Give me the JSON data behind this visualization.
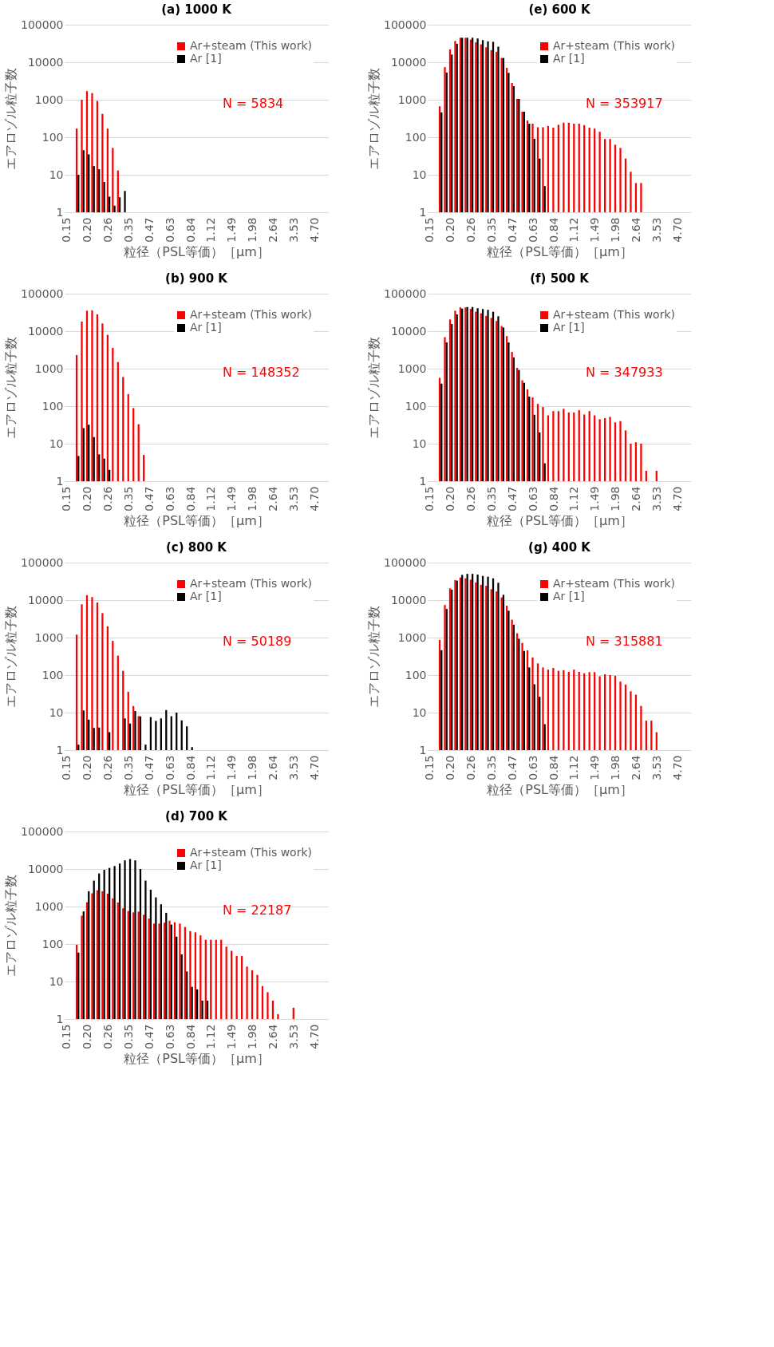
{
  "chart_data": [
    {
      "type": "bar",
      "title": "(a) 1000 K",
      "xlabel": "粒径（PSL等価）［μm］",
      "ylabel": "エアロゾル粒子数",
      "log": true,
      "grid": "y",
      "legend": "top right",
      "ylim": [
        1,
        100000
      ],
      "yticks": [
        1,
        10,
        100,
        1000,
        10000,
        100000
      ],
      "annotations": [
        "N = 5834"
      ],
      "categories": [
        "0.15",
        null,
        null,
        null,
        "0.20",
        null,
        null,
        null,
        "0.26",
        null,
        null,
        null,
        "0.35",
        null,
        null,
        null,
        "0.47",
        null,
        null,
        null,
        "0.63",
        null,
        null,
        null,
        "0.84",
        null,
        null,
        null,
        "1.12",
        null,
        null,
        null,
        "1.49",
        null,
        null,
        null,
        "1.98",
        null,
        null,
        null,
        "2.64",
        null,
        null,
        null,
        "3.53",
        null,
        null,
        null,
        "4.70",
        null,
        null
      ],
      "series": [
        {
          "name": "Ar+steam (This work)",
          "color": "#ff0000",
          "values": [
            null,
            null,
            170,
            1000,
            1700,
            1500,
            930,
            420,
            170,
            52,
            13,
            null,
            null,
            null,
            null,
            null,
            null,
            null,
            null,
            null,
            null,
            null,
            null,
            null,
            null,
            null,
            null,
            null,
            null,
            null,
            null,
            null,
            null,
            null,
            null,
            null,
            null,
            null,
            null,
            null,
            null,
            null,
            null,
            null,
            null,
            null,
            null,
            null,
            null,
            null,
            null
          ]
        },
        {
          "name": "Ar [1]",
          "color": "#000000",
          "values": [
            null,
            null,
            10,
            45,
            35,
            17,
            14,
            6.4,
            2.6,
            1.5,
            2.5,
            3.7,
            null,
            null,
            null,
            null,
            null,
            null,
            null,
            null,
            null,
            null,
            null,
            null,
            null,
            null,
            null,
            null,
            null,
            null,
            null,
            null,
            null,
            null,
            null,
            null,
            null,
            null,
            null,
            null,
            null,
            null,
            null,
            null,
            null,
            null,
            null,
            null,
            null,
            null,
            null
          ]
        }
      ]
    },
    {
      "type": "bar",
      "title": "(e) 600 K",
      "xlabel": "粒径（PSL等価）［μm］",
      "ylabel": "エアロゾル粒子数",
      "log": true,
      "grid": "y",
      "legend": "top right",
      "ylim": [
        1,
        100000
      ],
      "yticks": [
        1,
        10,
        100,
        1000,
        10000,
        100000
      ],
      "annotations": [
        "N = 353917"
      ],
      "categories": [
        "0.15",
        null,
        null,
        null,
        "0.20",
        null,
        null,
        null,
        "0.26",
        null,
        null,
        null,
        "0.35",
        null,
        null,
        null,
        "0.47",
        null,
        null,
        null,
        "0.63",
        null,
        null,
        null,
        "0.84",
        null,
        null,
        null,
        "1.12",
        null,
        null,
        null,
        "1.49",
        null,
        null,
        null,
        "1.98",
        null,
        null,
        null,
        "2.64",
        null,
        null,
        null,
        "3.53",
        null,
        null,
        null,
        "4.70",
        null,
        null
      ],
      "series": [
        {
          "name": "Ar+steam (This work)",
          "color": "#ff0000",
          "values": [
            null,
            null,
            670,
            7400,
            22000,
            37000,
            45000,
            45000,
            40000,
            34000,
            30000,
            25000,
            21000,
            19000,
            13000,
            7100,
            2800,
            1050,
            480,
            280,
            230,
            185,
            185,
            200,
            180,
            215,
            245,
            245,
            230,
            230,
            210,
            180,
            170,
            140,
            90,
            90,
            63,
            52,
            27,
            12,
            6,
            6,
            null,
            null,
            null,
            null,
            null,
            null,
            null,
            null,
            null
          ]
        },
        {
          "name": "Ar [1]",
          "color": "#000000",
          "values": [
            null,
            null,
            460,
            5300,
            16000,
            31000,
            45000,
            45000,
            45000,
            43000,
            39000,
            36000,
            35000,
            26000,
            13000,
            5200,
            2300,
            1050,
            480,
            230,
            91,
            27,
            5,
            null,
            null,
            null,
            null,
            null,
            null,
            null,
            null,
            null,
            null,
            null,
            null,
            null,
            null,
            null,
            null,
            null,
            null,
            null,
            null,
            null,
            null,
            null,
            null,
            null,
            null,
            null,
            null
          ]
        }
      ]
    },
    {
      "type": "bar",
      "title": "(b) 900 K",
      "xlabel": "粒径（PSL等価）［μm］",
      "ylabel": "エアロゾル粒子数",
      "log": true,
      "grid": "y",
      "legend": "top right",
      "ylim": [
        1,
        100000
      ],
      "yticks": [
        1,
        10,
        100,
        1000,
        10000,
        100000
      ],
      "annotations": [
        "N = 148352"
      ],
      "categories": [
        "0.15",
        null,
        null,
        null,
        "0.20",
        null,
        null,
        null,
        "0.26",
        null,
        null,
        null,
        "0.35",
        null,
        null,
        null,
        "0.47",
        null,
        null,
        null,
        "0.63",
        null,
        null,
        null,
        "0.84",
        null,
        null,
        null,
        "1.12",
        null,
        null,
        null,
        "1.49",
        null,
        null,
        null,
        "1.98",
        null,
        null,
        null,
        "2.64",
        null,
        null,
        null,
        "3.53",
        null,
        null,
        null,
        "4.70",
        null,
        null
      ],
      "series": [
        {
          "name": "Ar+steam (This work)",
          "color": "#ff0000",
          "values": [
            null,
            null,
            2300,
            18000,
            35000,
            36000,
            28000,
            16000,
            8000,
            3600,
            1500,
            600,
            210,
            89,
            33,
            5,
            null,
            null,
            null,
            null,
            null,
            null,
            null,
            null,
            null,
            null,
            null,
            null,
            null,
            null,
            null,
            null,
            null,
            null,
            null,
            null,
            null,
            null,
            null,
            null,
            null,
            null,
            null,
            null,
            null,
            null,
            null,
            null,
            null,
            null,
            null
          ]
        },
        {
          "name": "Ar [1]",
          "color": "#000000",
          "values": [
            null,
            null,
            4.7,
            26,
            32,
            15,
            5.2,
            4,
            2,
            null,
            null,
            null,
            null,
            null,
            null,
            null,
            null,
            null,
            null,
            null,
            null,
            null,
            null,
            null,
            null,
            null,
            null,
            null,
            null,
            null,
            null,
            null,
            null,
            null,
            null,
            null,
            null,
            null,
            null,
            null,
            null,
            null,
            null,
            null,
            null,
            null,
            null,
            null,
            null,
            null,
            null
          ]
        }
      ]
    },
    {
      "type": "bar",
      "title": "(f) 500 K",
      "xlabel": "粒径（PSL等価）［μm］",
      "ylabel": "エアロゾル粒子数",
      "log": true,
      "grid": "y",
      "legend": "top right",
      "ylim": [
        1,
        100000
      ],
      "yticks": [
        1,
        10,
        100,
        1000,
        10000,
        100000
      ],
      "annotations": [
        "N = 347933"
      ],
      "categories": [
        "0.15",
        null,
        null,
        null,
        "0.20",
        null,
        null,
        null,
        "0.26",
        null,
        null,
        null,
        "0.35",
        null,
        null,
        null,
        "0.47",
        null,
        null,
        null,
        "0.63",
        null,
        null,
        null,
        "0.84",
        null,
        null,
        null,
        "1.12",
        null,
        null,
        null,
        "1.49",
        null,
        null,
        null,
        "1.98",
        null,
        null,
        null,
        "2.64",
        null,
        null,
        null,
        "3.53",
        null,
        null,
        null,
        "4.70",
        null,
        null
      ],
      "series": [
        {
          "name": "Ar+steam (This work)",
          "color": "#ff0000",
          "values": [
            null,
            null,
            570,
            6900,
            20500,
            35000,
            43000,
            43000,
            39000,
            33000,
            30000,
            25500,
            22500,
            18700,
            13700,
            7400,
            2800,
            1050,
            490,
            280,
            170,
            115,
            95,
            57,
            74,
            74,
            85,
            68,
            68,
            78,
            60,
            74,
            57,
            45,
            48,
            52,
            37,
            40,
            22.6,
            10,
            10.9,
            10,
            1.9,
            null,
            1.9,
            null,
            null,
            null,
            null,
            null,
            null
          ]
        },
        {
          "name": "Ar [1]",
          "color": "#000000",
          "values": [
            null,
            null,
            400,
            5000,
            15500,
            28000,
            40000,
            44000,
            44000,
            41000,
            39000,
            37000,
            33000,
            25000,
            12500,
            5000,
            2000,
            920,
            420,
            180,
            59,
            20,
            3,
            null,
            null,
            null,
            null,
            null,
            null,
            null,
            null,
            null,
            null,
            null,
            null,
            null,
            null,
            null,
            null,
            null,
            null,
            null,
            null,
            null,
            null,
            null,
            null,
            null,
            null,
            null,
            null
          ]
        }
      ]
    },
    {
      "type": "bar",
      "title": "(c) 800 K",
      "xlabel": "粒径（PSL等価）［μm］",
      "ylabel": "エアロゾル粒子数",
      "log": true,
      "grid": "y",
      "legend": "top right",
      "ylim": [
        1,
        100000
      ],
      "yticks": [
        1,
        10,
        100,
        1000,
        10000,
        100000
      ],
      "annotations": [
        "N = 50189"
      ],
      "categories": [
        "0.15",
        null,
        null,
        null,
        "0.20",
        null,
        null,
        null,
        "0.26",
        null,
        null,
        null,
        "0.35",
        null,
        null,
        null,
        "0.47",
        null,
        null,
        null,
        "0.63",
        null,
        null,
        null,
        "0.84",
        null,
        null,
        null,
        "1.12",
        null,
        null,
        null,
        "1.49",
        null,
        null,
        null,
        "1.98",
        null,
        null,
        null,
        "2.64",
        null,
        null,
        null,
        "3.53",
        null,
        null,
        null,
        "4.70",
        null,
        null
      ],
      "series": [
        {
          "name": "Ar+steam (This work)",
          "color": "#ff0000",
          "values": [
            null,
            null,
            1200,
            7700,
            13500,
            12000,
            8600,
            4500,
            2000,
            820,
            330,
            130,
            36,
            15,
            8.1,
            null,
            null,
            null,
            null,
            null,
            null,
            null,
            null,
            null,
            null,
            null,
            null,
            null,
            null,
            null,
            null,
            null,
            null,
            null,
            null,
            null,
            null,
            null,
            null,
            null,
            null,
            null,
            null,
            null,
            null,
            null,
            null,
            null,
            null,
            null,
            null
          ]
        },
        {
          "name": "Ar [1]",
          "color": "#000000",
          "values": [
            null,
            null,
            1.4,
            11.4,
            6.5,
            3.9,
            4,
            null,
            3,
            null,
            null,
            7,
            5.1,
            11,
            7.9,
            1.4,
            7.6,
            6,
            7,
            11.7,
            8,
            10,
            6.2,
            4.3,
            1.2,
            null,
            null,
            null,
            null,
            null,
            null,
            null,
            null,
            null,
            null,
            null,
            null,
            null,
            null,
            null,
            null,
            null,
            null,
            null,
            null,
            null,
            null,
            null,
            null,
            null,
            null
          ]
        }
      ]
    },
    {
      "type": "bar",
      "title": "(g) 400 K",
      "xlabel": "粒径（PSL等価）［μm］",
      "ylabel": "エアロゾル粒子数",
      "log": true,
      "grid": "y",
      "legend": "top right",
      "ylim": [
        1,
        100000
      ],
      "yticks": [
        1,
        10,
        100,
        1000,
        10000,
        100000
      ],
      "annotations": [
        "N = 315881"
      ],
      "categories": [
        "0.15",
        null,
        null,
        null,
        "0.20",
        null,
        null,
        null,
        "0.26",
        null,
        null,
        null,
        "0.35",
        null,
        null,
        null,
        "0.47",
        null,
        null,
        null,
        "0.63",
        null,
        null,
        null,
        "0.84",
        null,
        null,
        null,
        "1.12",
        null,
        null,
        null,
        "1.49",
        null,
        null,
        null,
        "1.98",
        null,
        null,
        null,
        "2.64",
        null,
        null,
        null,
        "3.53",
        null,
        null,
        null,
        "4.70",
        null,
        null
      ],
      "series": [
        {
          "name": "Ar+steam (This work)",
          "color": "#ff0000",
          "values": [
            null,
            null,
            870,
            7400,
            20500,
            34000,
            40000,
            38000,
            35000,
            29500,
            25500,
            24000,
            19500,
            17000,
            11800,
            7100,
            3000,
            1300,
            720,
            460,
            295,
            205,
            160,
            140,
            155,
            130,
            135,
            122,
            140,
            122,
            112,
            120,
            120,
            93,
            105,
            100,
            96,
            67,
            56,
            37,
            30,
            15,
            6.1,
            6.1,
            3,
            null,
            null,
            null,
            null,
            null,
            null
          ]
        },
        {
          "name": "Ar [1]",
          "color": "#000000",
          "values": [
            null,
            null,
            460,
            5800,
            19000,
            33000,
            47000,
            50000,
            50000,
            48000,
            44000,
            42000,
            38000,
            29000,
            13800,
            5200,
            2200,
            930,
            440,
            160,
            57,
            26.5,
            4.9,
            null,
            null,
            null,
            null,
            null,
            null,
            null,
            null,
            null,
            null,
            null,
            null,
            null,
            null,
            null,
            null,
            null,
            null,
            null,
            null,
            null,
            null,
            null,
            null,
            null,
            null,
            null,
            null
          ]
        }
      ]
    },
    {
      "type": "bar",
      "title": "(d) 700 K",
      "xlabel": "粒径（PSL等価）［μm］",
      "ylabel": "エアロゾル粒子数",
      "log": true,
      "grid": "y",
      "legend": "top right",
      "ylim": [
        1,
        100000
      ],
      "yticks": [
        1,
        10,
        100,
        1000,
        10000,
        100000
      ],
      "annotations": [
        "N = 22187"
      ],
      "categories": [
        "0.15",
        null,
        null,
        null,
        "0.20",
        null,
        null,
        null,
        "0.26",
        null,
        null,
        null,
        "0.35",
        null,
        null,
        null,
        "0.47",
        null,
        null,
        null,
        "0.63",
        null,
        null,
        null,
        "0.84",
        null,
        null,
        null,
        "1.12",
        null,
        null,
        null,
        "1.49",
        null,
        null,
        null,
        "1.98",
        null,
        null,
        null,
        "2.64",
        null,
        null,
        null,
        "3.53",
        null,
        null,
        null,
        "4.70",
        null,
        null
      ],
      "series": [
        {
          "name": "Ar+steam (This work)",
          "color": "#ff0000",
          "values": [
            null,
            null,
            96,
            570,
            1300,
            2250,
            2700,
            2550,
            2200,
            1650,
            1280,
            900,
            760,
            700,
            730,
            600,
            480,
            350,
            350,
            370,
            420,
            380,
            350,
            285,
            220,
            205,
            170,
            130,
            130,
            130,
            130,
            85,
            66,
            48,
            48,
            25,
            20,
            15,
            7.6,
            5.2,
            3.1,
            1.35,
            null,
            null,
            2,
            null,
            null,
            null,
            null,
            null,
            null
          ]
        },
        {
          "name": "Ar [1]",
          "color": "#000000",
          "values": [
            null,
            null,
            59,
            740,
            2550,
            4900,
            7600,
            9500,
            10700,
            12000,
            14000,
            17000,
            18500,
            17000,
            10000,
            4900,
            2800,
            1750,
            1150,
            680,
            330,
            157,
            53,
            18.5,
            7.2,
            6.2,
            3.1,
            3.1,
            null,
            null,
            null,
            null,
            null,
            null,
            null,
            null,
            null,
            null,
            null,
            null,
            null,
            null,
            null,
            null,
            null,
            null,
            null,
            null,
            null,
            null,
            null
          ]
        }
      ]
    }
  ]
}
